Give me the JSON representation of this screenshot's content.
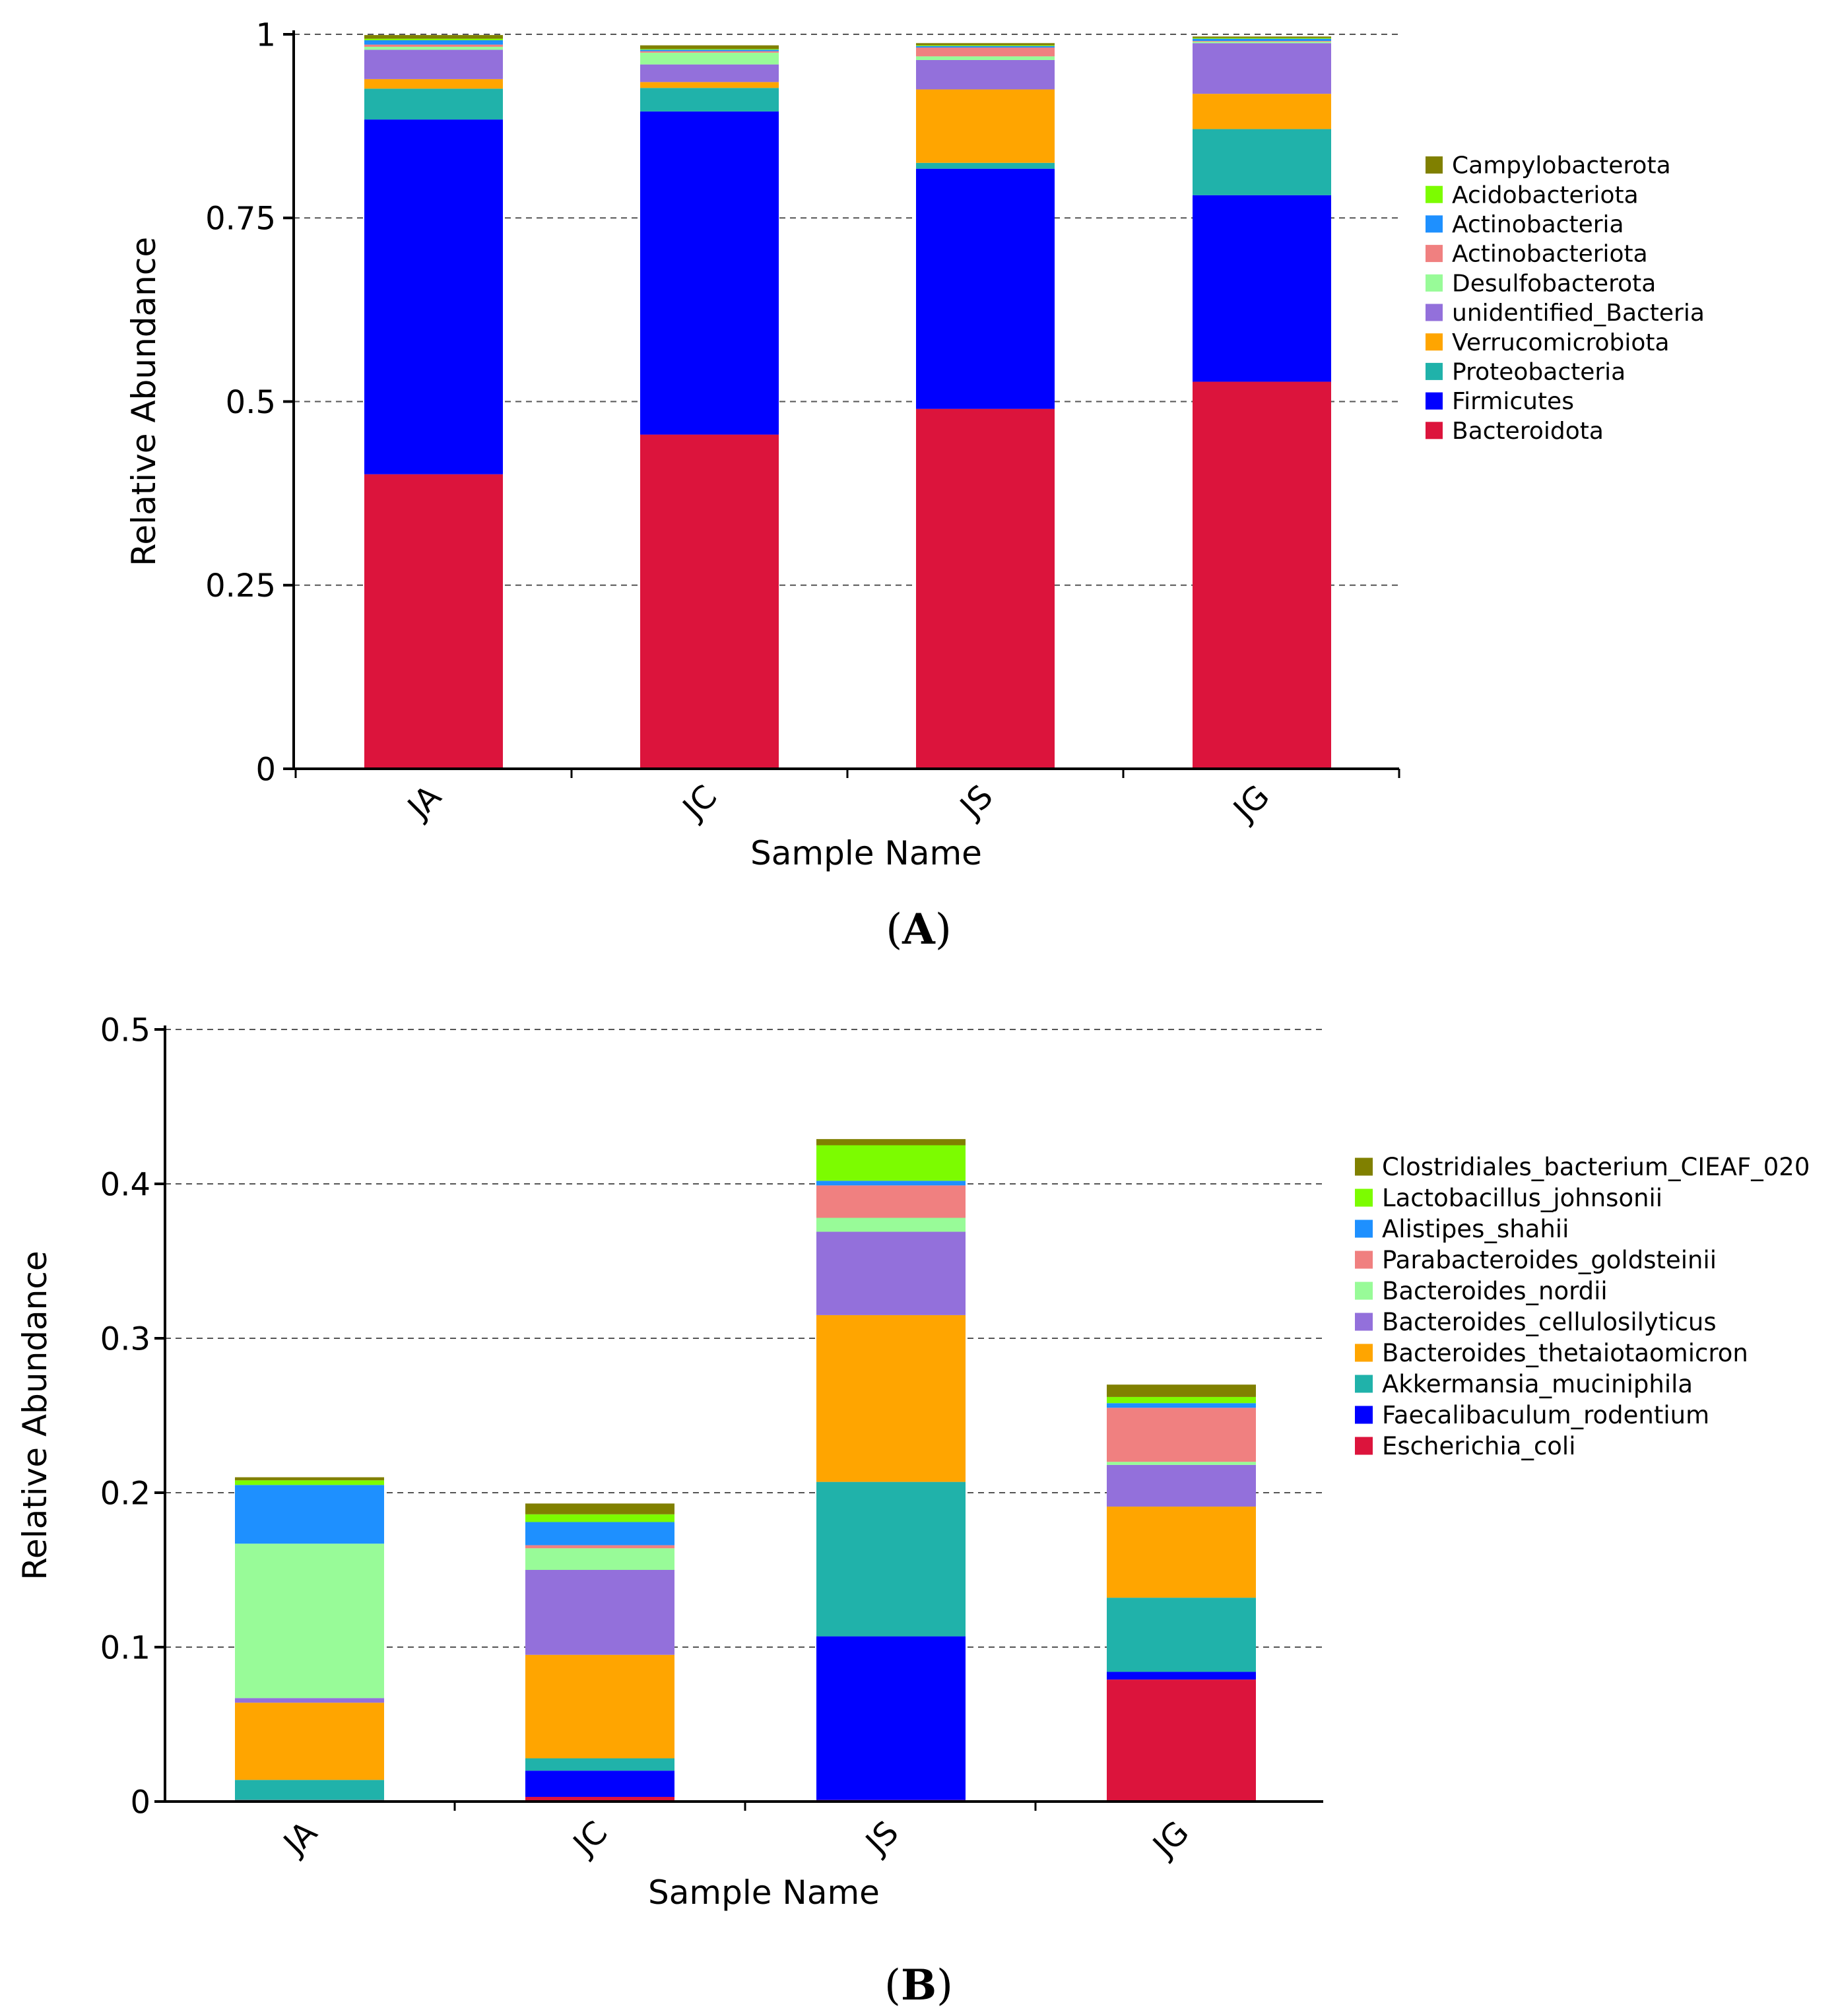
{
  "chart_data": [
    {
      "type": "bar",
      "stacked": true,
      "panel_label": "A",
      "xlabel": "Sample Name",
      "ylabel": "Relative Abundance",
      "ylim": [
        0,
        1
      ],
      "yticks": [
        0,
        0.25,
        0.5,
        0.75,
        1
      ],
      "ytick_labels": [
        "0",
        "0.25",
        "0.5",
        "0.75",
        "1"
      ],
      "grid": "dashed horizontal",
      "legend_position": "right",
      "categories": [
        "JA",
        "JC",
        "JS",
        "JG"
      ],
      "series": [
        {
          "name": "Bacteroidota",
          "color": "#dc143c",
          "values": [
            0.401,
            0.455,
            0.49,
            0.527
          ]
        },
        {
          "name": "Firmicutes",
          "color": "#0000ff",
          "values": [
            0.483,
            0.44,
            0.327,
            0.254
          ]
        },
        {
          "name": "Proteobacteria",
          "color": "#20b2aa",
          "values": [
            0.042,
            0.032,
            0.008,
            0.09
          ]
        },
        {
          "name": "Verrucomicrobiota",
          "color": "#ffa500",
          "values": [
            0.013,
            0.008,
            0.1,
            0.048
          ]
        },
        {
          "name": "unidentified_Bacteria",
          "color": "#9370db",
          "values": [
            0.04,
            0.024,
            0.04,
            0.069
          ]
        },
        {
          "name": "Desulfobacterota",
          "color": "#98fb98",
          "values": [
            0.004,
            0.016,
            0.005,
            0.002
          ]
        },
        {
          "name": "Actinobacteriota",
          "color": "#f08080",
          "values": [
            0.003,
            0.002,
            0.012,
            0.001
          ]
        },
        {
          "name": "Actinobacteria",
          "color": "#1e90ff",
          "values": [
            0.006,
            0.002,
            0.002,
            0.003
          ]
        },
        {
          "name": "Acidobacteriota",
          "color": "#7cfc00",
          "values": [
            0.002,
            0.001,
            0.001,
            0.001
          ]
        },
        {
          "name": "Campylobacterota",
          "color": "#808000",
          "values": [
            0.005,
            0.005,
            0.003,
            0.002
          ]
        }
      ]
    },
    {
      "type": "bar",
      "stacked": true,
      "panel_label": "B",
      "xlabel": "Sample Name",
      "ylabel": "Relative Abundance",
      "ylim": [
        0,
        0.5
      ],
      "yticks": [
        0,
        0.1,
        0.2,
        0.3,
        0.4,
        0.5
      ],
      "ytick_labels": [
        "0",
        "0.1",
        "0.2",
        "0.3",
        "0.4",
        "0.5"
      ],
      "grid": "dashed horizontal",
      "legend_position": "right",
      "categories": [
        "JA",
        "JC",
        "JS",
        "JG"
      ],
      "series": [
        {
          "name": "Escherichia_coli",
          "color": "#dc143c",
          "values": [
            0.001,
            0.003,
            0.001,
            0.079
          ]
        },
        {
          "name": "Faecalibaculum_rodentium",
          "color": "#0000ff",
          "values": [
            0.0,
            0.017,
            0.106,
            0.005
          ]
        },
        {
          "name": "Akkermansia_muciniphila",
          "color": "#20b2aa",
          "values": [
            0.013,
            0.008,
            0.1,
            0.048
          ]
        },
        {
          "name": "Bacteroides_thetaiotaomicron",
          "color": "#ffa500",
          "values": [
            0.05,
            0.067,
            0.108,
            0.059
          ]
        },
        {
          "name": "Bacteroides_cellulosilyticus",
          "color": "#9370db",
          "values": [
            0.003,
            0.055,
            0.054,
            0.027
          ]
        },
        {
          "name": "Bacteroides_nordii",
          "color": "#98fb98",
          "values": [
            0.1,
            0.014,
            0.009,
            0.002
          ]
        },
        {
          "name": "Parabacteroides_goldsteinii",
          "color": "#f08080",
          "values": [
            0.0,
            0.002,
            0.021,
            0.035
          ]
        },
        {
          "name": "Alistipes_shahii",
          "color": "#1e90ff",
          "values": [
            0.038,
            0.015,
            0.003,
            0.003
          ]
        },
        {
          "name": "Lactobacillus_johnsonii",
          "color": "#7cfc00",
          "values": [
            0.003,
            0.005,
            0.023,
            0.004
          ]
        },
        {
          "name": "Clostridiales_bacterium_CIEAF_020",
          "color": "#808000",
          "values": [
            0.002,
            0.007,
            0.004,
            0.008
          ]
        }
      ]
    }
  ]
}
